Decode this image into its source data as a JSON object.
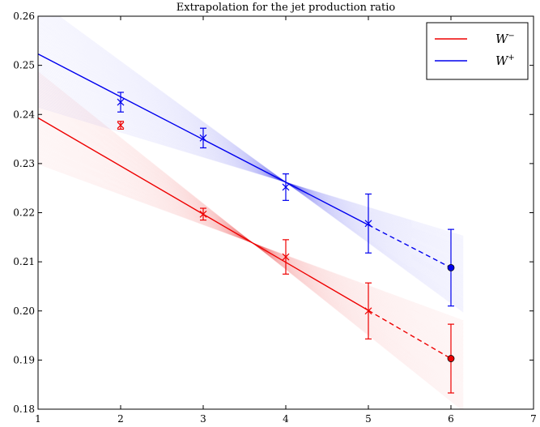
{
  "chart_data": {
    "type": "line",
    "title": "Extrapolation for the jet production ratio",
    "xlabel": "",
    "ylabel": "",
    "xlim": [
      1,
      7
    ],
    "ylim": [
      0.18,
      0.26
    ],
    "x_ticks": [
      "1",
      "2",
      "3",
      "4",
      "5",
      "6",
      "7"
    ],
    "y_ticks": [
      "0.18",
      "0.19",
      "0.20",
      "0.21",
      "0.22",
      "0.23",
      "0.24",
      "0.25",
      "0.26"
    ],
    "grid": false,
    "legend_position": "top-right",
    "series": [
      {
        "name": "W⁻",
        "legend_base": "W",
        "legend_sup": "−",
        "color": "#ee0000",
        "fit_line": {
          "x": [
            1,
            5
          ],
          "y": [
            0.2393,
            0.2001
          ]
        },
        "extrapolation": {
          "x": [
            5,
            6
          ],
          "y": [
            0.2001,
            0.1903
          ]
        },
        "points": [
          {
            "x": 2,
            "y": 0.2378,
            "err": 0.0008
          },
          {
            "x": 3,
            "y": 0.2197,
            "err": 0.0012
          },
          {
            "x": 4,
            "y": 0.211,
            "err": 0.0035
          },
          {
            "x": 5,
            "y": 0.2,
            "err": 0.0057
          }
        ],
        "extrapolated_point": {
          "x": 6,
          "y": 0.1903,
          "err_low": 0.007,
          "err_high": 0.007
        }
      },
      {
        "name": "W⁺",
        "legend_base": "W",
        "legend_sup": "+",
        "color": "#0000ee",
        "fit_line": {
          "x": [
            1,
            5
          ],
          "y": [
            0.2523,
            0.2175
          ]
        },
        "extrapolation": {
          "x": [
            5,
            6
          ],
          "y": [
            0.2175,
            0.2088
          ]
        },
        "points": [
          {
            "x": 2,
            "y": 0.2425,
            "err": 0.002
          },
          {
            "x": 3,
            "y": 0.2352,
            "err": 0.002
          },
          {
            "x": 4,
            "y": 0.2252,
            "err": 0.0027
          },
          {
            "x": 5,
            "y": 0.2178,
            "err": 0.006
          }
        ],
        "extrapolated_point": {
          "x": 6,
          "y": 0.2088,
          "err_low": 0.0078,
          "err_high": 0.0078
        }
      }
    ]
  }
}
